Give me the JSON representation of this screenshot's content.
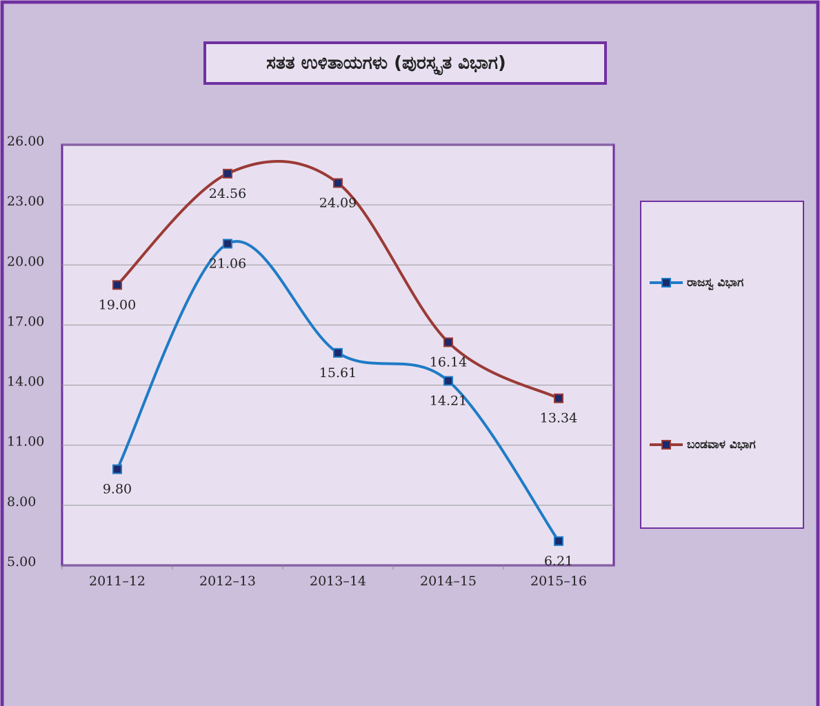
{
  "chart_data": {
    "type": "line",
    "title": "ಸತತ ಉಳಿತಾಯಗಳು (ಪುರಸ್ಕೃತ ವಿಭಾಗ)",
    "categories": [
      "2011–12",
      "2012–13",
      "2013–14",
      "2014–15",
      "2015–16"
    ],
    "series": [
      {
        "name": "ರಾಜಸ್ವ ವಿಭಾಗ",
        "color": "#1f7bc6",
        "values": [
          9.8,
          21.06,
          15.61,
          14.21,
          6.21
        ],
        "value_labels": [
          "9.80",
          "21.06",
          "15.61",
          "14.21",
          "6.21"
        ]
      },
      {
        "name": "ಬಂಡವಾಳ ವಿಭಾಗ",
        "color": "#9b3a36",
        "values": [
          19.0,
          24.56,
          24.09,
          16.14,
          13.34
        ],
        "value_labels": [
          "19.00",
          "24.56",
          "24.09",
          "16.14",
          "13.34"
        ]
      }
    ],
    "ylim": [
      5,
      26
    ],
    "yticks": [
      {
        "value": 5,
        "label": "5.00"
      },
      {
        "value": 8,
        "label": "8.00"
      },
      {
        "value": 11,
        "label": "11.00"
      },
      {
        "value": 14,
        "label": "14.00"
      },
      {
        "value": 17,
        "label": "17.00"
      },
      {
        "value": 20,
        "label": "20.00"
      },
      {
        "value": 23,
        "label": "23.00"
      },
      {
        "value": 26,
        "label": "26.00"
      }
    ],
    "grid": true,
    "legend": "right"
  }
}
